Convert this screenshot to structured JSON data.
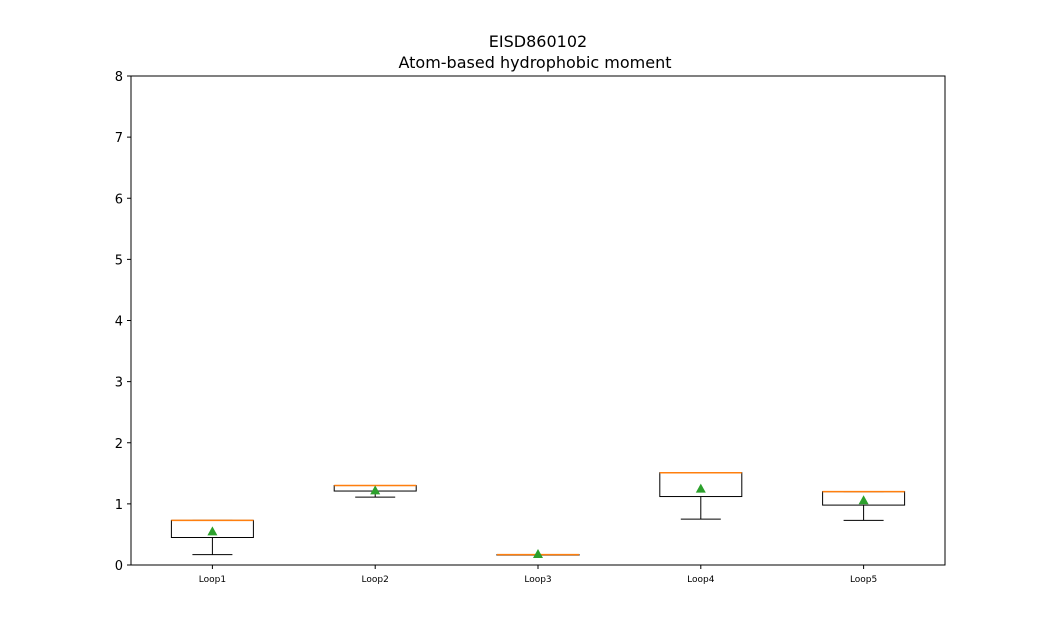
{
  "chart_data": {
    "type": "box",
    "title": "EISD860102",
    "subtitle": "Atom-based hydrophobic moment",
    "xlabel": "",
    "ylabel": "",
    "ylim": [
      0,
      8
    ],
    "yticks": [
      0,
      1,
      2,
      3,
      4,
      5,
      6,
      7,
      8
    ],
    "categories": [
      "Loop1",
      "Loop2",
      "Loop3",
      "Loop4",
      "Loop5"
    ],
    "boxes": [
      {
        "whisker_low": 0.17,
        "q1": 0.45,
        "median": 0.73,
        "q3": 0.73,
        "whisker_high": 0.73,
        "mean": 0.55
      },
      {
        "whisker_low": 1.11,
        "q1": 1.21,
        "median": 1.3,
        "q3": 1.3,
        "whisker_high": 1.3,
        "mean": 1.22
      },
      {
        "whisker_low": 0.17,
        "q1": 0.17,
        "median": 0.17,
        "q3": 0.17,
        "whisker_high": 0.17,
        "mean": 0.18
      },
      {
        "whisker_low": 0.75,
        "q1": 1.12,
        "median": 1.51,
        "q3": 1.51,
        "whisker_high": 1.51,
        "mean": 1.25
      },
      {
        "whisker_low": 0.73,
        "q1": 0.98,
        "median": 1.2,
        "q3": 1.2,
        "whisker_high": 1.2,
        "mean": 1.06
      }
    ],
    "grid": false,
    "colors": {
      "box": "#000000",
      "median": "#ff7f0e",
      "mean": "#2ca02c"
    }
  }
}
